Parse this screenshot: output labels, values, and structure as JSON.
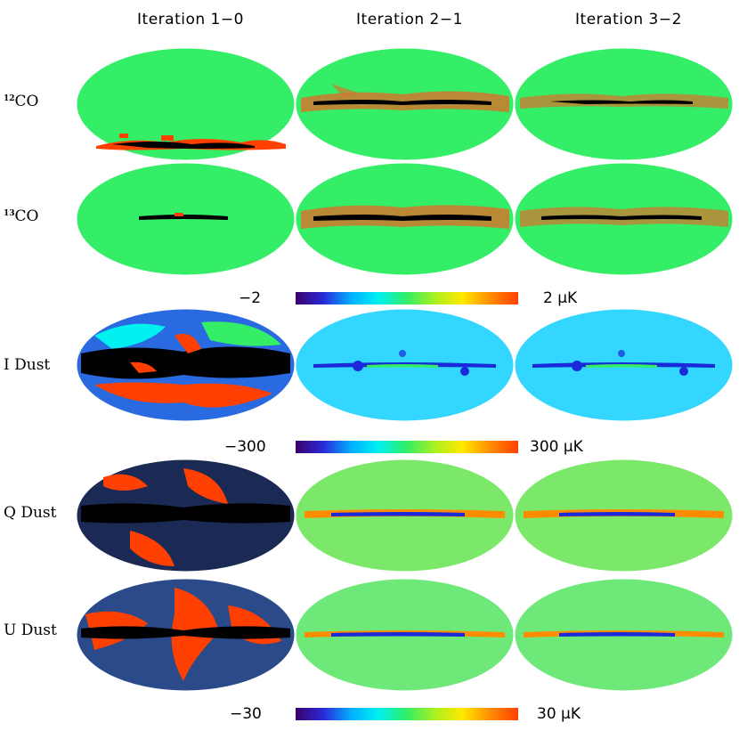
{
  "columns": [
    "Iteration 1−0",
    "Iteration 2−1",
    "Iteration 3−2"
  ],
  "rows": [
    {
      "id": "co12",
      "iso": "12",
      "label": "CO"
    },
    {
      "id": "co13",
      "iso": "13",
      "label": "CO"
    },
    {
      "id": "idust",
      "iso": "",
      "label": "I Dust"
    },
    {
      "id": "qdust",
      "iso": "",
      "label": "Q Dust"
    },
    {
      "id": "udust",
      "iso": "",
      "label": "U Dust"
    }
  ],
  "scales": [
    {
      "min": "−2",
      "max": "2 μK"
    },
    {
      "min": "−300",
      "max": "300 μK"
    },
    {
      "min": "−30",
      "max": "30 μK"
    }
  ],
  "colors": {
    "colormap": [
      "#3b006b",
      "#2a2ad8",
      "#00b0ff",
      "#00f0f0",
      "#33ee66",
      "#aaf020",
      "#ffe800",
      "#ff8c00",
      "#ff4000"
    ],
    "background": "#ffffff"
  }
}
